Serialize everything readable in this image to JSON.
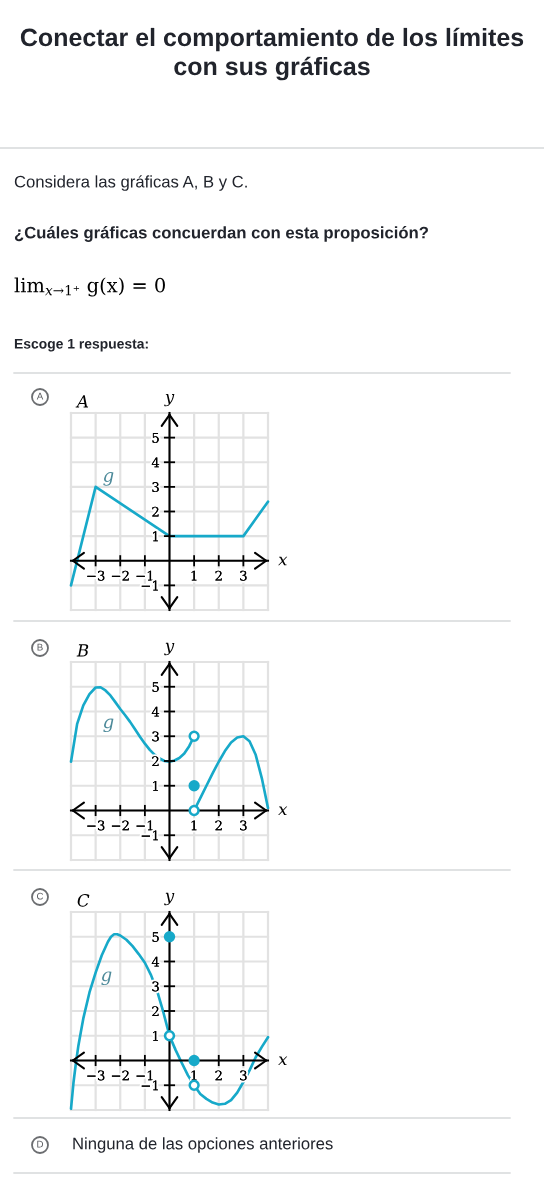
{
  "chart_data": [
    {
      "type": "other",
      "title": "Conectar el comportamiento de los límites con sus gráficas",
      "annotations": [
        "Considera las gráficas A, B y C.",
        "¿Cuáles gráficas concuerdan con esta proposición?",
        "lim$_{x→1⁺}$ g(x) = 0",
        "Escoge 1 respuesta:"
      ]
    },
    {
      "type": "line",
      "title": "A",
      "xlabel": "x",
      "ylabel": "y",
      "xlim": [
        -4,
        4
      ],
      "ylim": [
        -2,
        6
      ],
      "xticks": [
        {
          "value": -4,
          "label": null
        },
        {
          "value": -3,
          "label": "−3"
        },
        {
          "value": -2,
          "label": "−2"
        },
        {
          "value": -1,
          "label": "−1"
        },
        {
          "value": 0,
          "label": null
        },
        1,
        2,
        3,
        {
          "value": 4,
          "label": null
        }
      ],
      "yticks": [
        {
          "value": -2,
          "label": null
        },
        {
          "value": -1,
          "label": "−1"
        },
        {
          "value": 0,
          "label": null
        },
        1,
        2,
        3,
        4,
        5,
        {
          "value": 6,
          "label": null
        }
      ],
      "grid": true,
      "series": [
        {
          "type": "line",
          "color": "#17a9c9",
          "marker": "none",
          "x": [
            -4,
            -3,
            0,
            3,
            4
          ],
          "values": [
            -1,
            3,
            1,
            1,
            2.4
          ]
        }
      ],
      "annotations": [
        "A",
        "g"
      ]
    },
    {
      "type": "line",
      "title": "B",
      "xlabel": "x",
      "ylabel": "y",
      "xlim": [
        -4,
        4
      ],
      "ylim": [
        -2,
        6
      ],
      "xticks": [
        {
          "value": -4,
          "label": null
        },
        {
          "value": -3,
          "label": "−3"
        },
        {
          "value": -2,
          "label": "−2"
        },
        {
          "value": -1,
          "label": "−1"
        },
        {
          "value": 0,
          "label": null
        },
        1,
        2,
        3,
        {
          "value": 4,
          "label": null
        }
      ],
      "yticks": [
        {
          "value": -2,
          "label": null
        },
        {
          "value": -1,
          "label": "−1"
        },
        {
          "value": 0,
          "label": null
        },
        1,
        2,
        3,
        4,
        5,
        {
          "value": 6,
          "label": null
        }
      ],
      "grid": true,
      "series": [
        {
          "type": "line",
          "color": "#17a9c9",
          "marker": "none",
          "x": [
            -4,
            -3.75,
            -3.5,
            -3.25,
            -3,
            -2.8,
            -2.6,
            -2.4,
            -2.2,
            -2,
            -1.8,
            -1.6,
            -1.4,
            -1.2,
            -1,
            -0.8,
            -0.6,
            -0.4,
            -0.2,
            0,
            0.2,
            0.4,
            0.6,
            0.8,
            1
          ],
          "values": [
            1.97,
            3.5,
            4.25,
            4.7,
            4.97,
            4.98,
            4.85,
            4.65,
            4.38,
            4.1,
            3.85,
            3.58,
            3.28,
            2.98,
            2.7,
            2.45,
            2.25,
            2.1,
            2.0,
            1.97,
            2.02,
            2.12,
            2.3,
            2.6,
            3.0
          ]
        },
        {
          "type": "line",
          "color": "#17a9c9",
          "marker": "none",
          "x": [
            1,
            1.25,
            1.5,
            1.75,
            2,
            2.25,
            2.5,
            2.75,
            3,
            3.25,
            3.5,
            3.75,
            4
          ],
          "values": [
            0,
            0.5,
            1.0,
            1.5,
            1.97,
            2.4,
            2.75,
            2.95,
            3.0,
            2.8,
            2.25,
            1.3,
            0.1
          ]
        },
        {
          "type": "scatter",
          "color": "#17a9c9",
          "marker": "circle",
          "x": [
            1,
            1,
            1
          ],
          "values": [
            3,
            1,
            0
          ],
          "colors": [
            "#ffffff",
            "#17a9c9",
            "#ffffff"
          ]
        }
      ],
      "annotations": [
        "B",
        "g"
      ]
    },
    {
      "type": "line",
      "title": "C",
      "xlabel": "x",
      "ylabel": "y",
      "xlim": [
        -4,
        4
      ],
      "ylim": [
        -2,
        6
      ],
      "xticks": [
        {
          "value": -4,
          "label": null
        },
        {
          "value": -3,
          "label": "−3"
        },
        {
          "value": -2,
          "label": "−2"
        },
        {
          "value": -1,
          "label": "−1"
        },
        {
          "value": 0,
          "label": null
        },
        1,
        2,
        3,
        {
          "value": 4,
          "label": null
        }
      ],
      "yticks": [
        {
          "value": -2,
          "label": null
        },
        {
          "value": -1,
          "label": "−1"
        },
        {
          "value": 0,
          "label": null
        },
        1,
        2,
        3,
        4,
        5,
        {
          "value": 6,
          "label": null
        }
      ],
      "grid": true,
      "series": [
        {
          "type": "line",
          "color": "#17a9c9",
          "marker": "none",
          "x": [
            -4,
            -3.9,
            -3.8,
            -3.7,
            -3.6,
            -3.5,
            -3.25,
            -3,
            -2.75,
            -2.5,
            -2.375,
            -2.25,
            -2.125,
            -2,
            -1.75,
            -1.5,
            -1.25,
            -1,
            -0.75,
            -0.5,
            -0.25,
            0,
            0.25,
            0.5,
            0.75,
            1,
            1.25,
            1.5,
            1.75,
            2,
            2.25,
            2.5,
            2.75,
            3,
            3.25,
            3.5,
            3.75,
            4
          ],
          "values": [
            -1.95,
            -0.9,
            -0.1,
            0.6,
            1.15,
            1.7,
            2.75,
            3.55,
            4.25,
            4.8,
            5.0,
            5.1,
            5.1,
            5.05,
            4.88,
            4.62,
            4.3,
            3.95,
            3.45,
            2.8,
            1.95,
            1.0,
            0.42,
            -0.1,
            -0.6,
            -1.0,
            -1.35,
            -1.55,
            -1.7,
            -1.78,
            -1.75,
            -1.6,
            -1.3,
            -0.87,
            -0.4,
            0.13,
            0.55,
            0.94
          ]
        },
        {
          "type": "scatter",
          "color": "#17a9c9",
          "marker": "circle",
          "x": [
            0,
            0,
            1,
            1
          ],
          "values": [
            5,
            1,
            0,
            -1
          ],
          "colors": [
            "#17a9c9",
            "#ffffff",
            "#17a9c9",
            "#ffffff"
          ]
        }
      ],
      "annotations": [
        "C",
        "g"
      ]
    },
    {
      "type": "other",
      "annotations": [
        "D",
        "Ninguna de las opciones anteriores"
      ]
    }
  ]
}
